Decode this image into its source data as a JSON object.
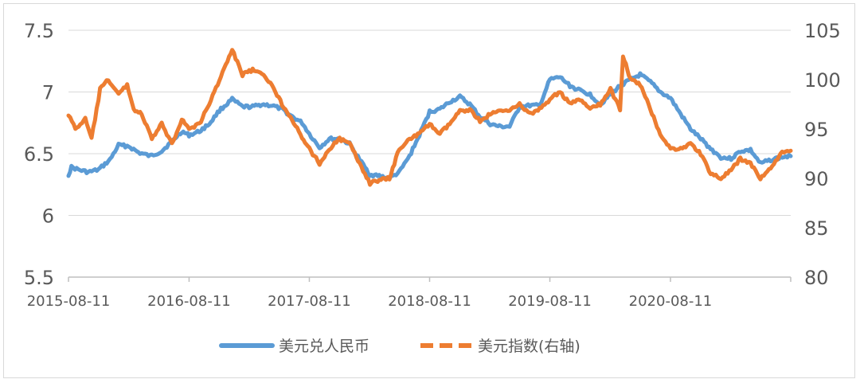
{
  "chart_data": {
    "type": "line",
    "x_tick_labels": [
      "2015-08-11",
      "2016-08-11",
      "2017-08-11",
      "2018-08-11",
      "2019-08-11",
      "2020-08-11"
    ],
    "y_left": {
      "ylim": [
        5.5,
        7.5
      ],
      "tick_labels": [
        "5.5",
        "6",
        "6.5",
        "7",
        "7.5"
      ]
    },
    "y_right": {
      "ylim": [
        80,
        105
      ],
      "tick_labels": [
        "80",
        "85",
        "90",
        "95",
        "100",
        "105"
      ]
    },
    "grid": true,
    "legend_position": "bottom",
    "x_domain": [
      "2015-08-11",
      "2021-08-11"
    ],
    "series": [
      {
        "name": "美元兑人民币",
        "axis": "left",
        "color": "#5b9bd5",
        "style": "solid",
        "points": [
          [
            "2015-08-11",
            6.33
          ],
          [
            "2015-08-20",
            6.39
          ],
          [
            "2015-09-10",
            6.37
          ],
          [
            "2015-10-10",
            6.35
          ],
          [
            "2015-11-10",
            6.37
          ],
          [
            "2015-12-15",
            6.45
          ],
          [
            "2016-01-10",
            6.57
          ],
          [
            "2016-02-10",
            6.56
          ],
          [
            "2016-03-10",
            6.51
          ],
          [
            "2016-04-15",
            6.48
          ],
          [
            "2016-05-20",
            6.52
          ],
          [
            "2016-06-20",
            6.6
          ],
          [
            "2016-07-20",
            6.68
          ],
          [
            "2016-08-11",
            6.65
          ],
          [
            "2016-09-11",
            6.68
          ],
          [
            "2016-10-11",
            6.74
          ],
          [
            "2016-11-11",
            6.85
          ],
          [
            "2016-12-20",
            6.94
          ],
          [
            "2017-01-20",
            6.88
          ],
          [
            "2017-02-20",
            6.88
          ],
          [
            "2017-03-20",
            6.9
          ],
          [
            "2017-04-20",
            6.89
          ],
          [
            "2017-05-20",
            6.86
          ],
          [
            "2017-06-20",
            6.8
          ],
          [
            "2017-07-20",
            6.75
          ],
          [
            "2017-08-11",
            6.66
          ],
          [
            "2017-09-11",
            6.55
          ],
          [
            "2017-10-11",
            6.62
          ],
          [
            "2017-11-11",
            6.62
          ],
          [
            "2017-12-11",
            6.58
          ],
          [
            "2018-01-11",
            6.45
          ],
          [
            "2018-02-11",
            6.33
          ],
          [
            "2018-03-11",
            6.32
          ],
          [
            "2018-04-11",
            6.3
          ],
          [
            "2018-05-11",
            6.35
          ],
          [
            "2018-06-11",
            6.48
          ],
          [
            "2018-07-11",
            6.65
          ],
          [
            "2018-08-11",
            6.84
          ],
          [
            "2018-09-11",
            6.86
          ],
          [
            "2018-10-11",
            6.92
          ],
          [
            "2018-11-11",
            6.96
          ],
          [
            "2018-12-11",
            6.9
          ],
          [
            "2019-01-11",
            6.8
          ],
          [
            "2019-02-11",
            6.74
          ],
          [
            "2019-03-11",
            6.72
          ],
          [
            "2019-04-11",
            6.72
          ],
          [
            "2019-05-11",
            6.88
          ],
          [
            "2019-06-11",
            6.89
          ],
          [
            "2019-07-11",
            6.89
          ],
          [
            "2019-08-11",
            7.1
          ],
          [
            "2019-09-11",
            7.12
          ],
          [
            "2019-10-11",
            7.05
          ],
          [
            "2019-11-11",
            7.01
          ],
          [
            "2019-12-11",
            6.98
          ],
          [
            "2020-01-11",
            6.9
          ],
          [
            "2020-02-11",
            6.98
          ],
          [
            "2020-03-11",
            7.05
          ],
          [
            "2020-04-11",
            7.1
          ],
          [
            "2020-05-11",
            7.14
          ],
          [
            "2020-06-11",
            7.08
          ],
          [
            "2020-07-11",
            7.0
          ],
          [
            "2020-08-11",
            6.95
          ],
          [
            "2020-09-11",
            6.82
          ],
          [
            "2020-10-11",
            6.7
          ],
          [
            "2020-11-11",
            6.62
          ],
          [
            "2020-12-11",
            6.54
          ],
          [
            "2021-01-11",
            6.47
          ],
          [
            "2021-02-11",
            6.46
          ],
          [
            "2021-03-11",
            6.52
          ],
          [
            "2021-04-11",
            6.53
          ],
          [
            "2021-05-11",
            6.42
          ],
          [
            "2021-06-11",
            6.45
          ],
          [
            "2021-07-11",
            6.47
          ],
          [
            "2021-08-11",
            6.48
          ]
        ]
      },
      {
        "name": "美元指数(右轴)",
        "axis": "right",
        "color": "#ed7d31",
        "style": "dashed",
        "points": [
          [
            "2015-08-11",
            96.5
          ],
          [
            "2015-09-01",
            95.0
          ],
          [
            "2015-10-01",
            96.0
          ],
          [
            "2015-10-20",
            94.0
          ],
          [
            "2015-11-15",
            99.0
          ],
          [
            "2015-12-10",
            100.0
          ],
          [
            "2016-01-10",
            98.5
          ],
          [
            "2016-02-05",
            99.5
          ],
          [
            "2016-02-25",
            97.0
          ],
          [
            "2016-03-20",
            96.5
          ],
          [
            "2016-04-20",
            94.0
          ],
          [
            "2016-05-20",
            95.5
          ],
          [
            "2016-06-20",
            93.5
          ],
          [
            "2016-07-20",
            96.0
          ],
          [
            "2016-08-11",
            95.0
          ],
          [
            "2016-09-11",
            95.5
          ],
          [
            "2016-10-11",
            97.5
          ],
          [
            "2016-11-11",
            100.0
          ],
          [
            "2016-12-20",
            103.0
          ],
          [
            "2017-01-20",
            100.5
          ],
          [
            "2017-02-20",
            101.0
          ],
          [
            "2017-03-20",
            100.5
          ],
          [
            "2017-04-20",
            99.5
          ],
          [
            "2017-05-20",
            97.5
          ],
          [
            "2017-06-20",
            96.0
          ],
          [
            "2017-07-20",
            94.0
          ],
          [
            "2017-08-11",
            93.0
          ],
          [
            "2017-09-11",
            91.5
          ],
          [
            "2017-10-11",
            93.0
          ],
          [
            "2017-11-11",
            94.0
          ],
          [
            "2017-12-11",
            93.5
          ],
          [
            "2018-01-11",
            91.5
          ],
          [
            "2018-02-11",
            89.5
          ],
          [
            "2018-03-11",
            89.8
          ],
          [
            "2018-04-11",
            90.0
          ],
          [
            "2018-05-11",
            93.0
          ],
          [
            "2018-06-11",
            94.0
          ],
          [
            "2018-07-11",
            94.5
          ],
          [
            "2018-08-11",
            95.5
          ],
          [
            "2018-09-11",
            94.5
          ],
          [
            "2018-10-11",
            95.5
          ],
          [
            "2018-11-11",
            96.8
          ],
          [
            "2018-12-11",
            97.0
          ],
          [
            "2019-01-11",
            95.8
          ],
          [
            "2019-02-11",
            96.5
          ],
          [
            "2019-03-11",
            96.8
          ],
          [
            "2019-04-11",
            97.0
          ],
          [
            "2019-05-11",
            97.5
          ],
          [
            "2019-06-11",
            96.5
          ],
          [
            "2019-07-11",
            97.0
          ],
          [
            "2019-08-11",
            98.0
          ],
          [
            "2019-09-11",
            98.8
          ],
          [
            "2019-10-11",
            97.5
          ],
          [
            "2019-11-11",
            98.0
          ],
          [
            "2019-12-11",
            97.0
          ],
          [
            "2020-01-11",
            97.5
          ],
          [
            "2020-02-11",
            99.0
          ],
          [
            "2020-03-11",
            97.0
          ],
          [
            "2020-03-20",
            102.5
          ],
          [
            "2020-04-11",
            100.0
          ],
          [
            "2020-05-11",
            99.5
          ],
          [
            "2020-06-11",
            97.0
          ],
          [
            "2020-07-11",
            94.5
          ],
          [
            "2020-08-11",
            93.0
          ],
          [
            "2020-09-11",
            93.0
          ],
          [
            "2020-10-11",
            93.5
          ],
          [
            "2020-11-11",
            92.5
          ],
          [
            "2020-12-11",
            90.5
          ],
          [
            "2021-01-11",
            90.0
          ],
          [
            "2021-02-11",
            90.8
          ],
          [
            "2021-03-11",
            92.0
          ],
          [
            "2021-04-11",
            91.5
          ],
          [
            "2021-05-11",
            90.0
          ],
          [
            "2021-06-11",
            91.0
          ],
          [
            "2021-07-11",
            92.5
          ],
          [
            "2021-08-11",
            92.8
          ]
        ]
      }
    ]
  }
}
